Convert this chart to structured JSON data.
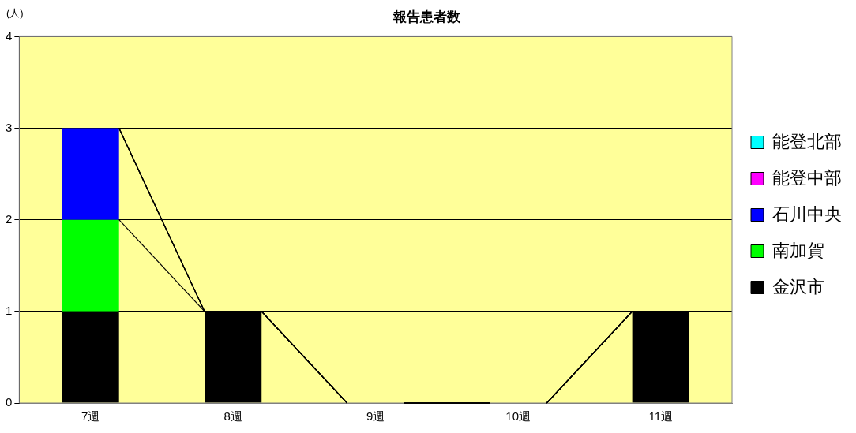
{
  "chart_data": {
    "type": "bar",
    "title": "報告患者数",
    "ylabel": "(人)",
    "stacked": true,
    "categories": [
      "7週",
      "8週",
      "9週",
      "10週",
      "11週"
    ],
    "series": [
      {
        "name": "金沢市",
        "color": "#000000",
        "values": [
          1,
          1,
          0,
          0,
          1
        ]
      },
      {
        "name": "南加賀",
        "color": "#00ff00",
        "values": [
          1,
          0,
          0,
          0,
          0
        ]
      },
      {
        "name": "石川中央",
        "color": "#0000ff",
        "values": [
          1,
          0,
          0,
          0,
          0
        ]
      },
      {
        "name": "能登中部",
        "color": "#ff00ff",
        "values": [
          0,
          0,
          0,
          0,
          0
        ]
      },
      {
        "name": "能登北部",
        "color": "#00ffff",
        "values": [
          0,
          0,
          0,
          0,
          0
        ]
      }
    ],
    "ylim": [
      0,
      4
    ],
    "yticks": [
      0,
      1,
      2,
      3,
      4
    ],
    "grid": "y",
    "legend": "right"
  }
}
